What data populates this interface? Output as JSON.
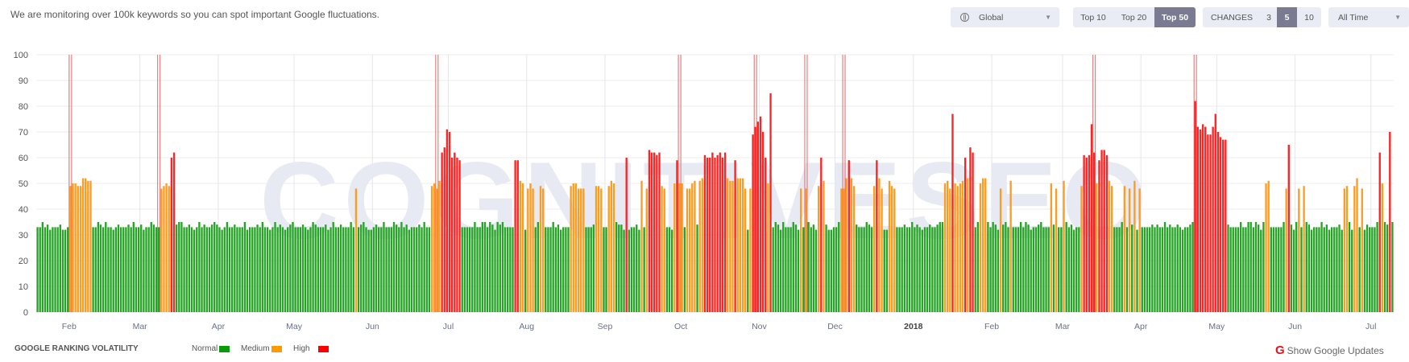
{
  "header": {
    "intro_text": "We are monitoring over 100k keywords so you can spot important Google fluctuations.",
    "region_select": {
      "value": "Global",
      "icon": "globe-icon"
    },
    "top_tabs": [
      {
        "label": "Top 10",
        "active": false
      },
      {
        "label": "Top 20",
        "active": false
      },
      {
        "label": "Top 50",
        "active": true
      }
    ],
    "changes": {
      "label": "CHANGES",
      "options": [
        {
          "label": "3",
          "active": false
        },
        {
          "label": "5",
          "active": true
        },
        {
          "label": "10",
          "active": false
        }
      ]
    },
    "period_select": {
      "value": "All Time"
    }
  },
  "watermark": "COGNITIVESEO",
  "legend": {
    "title": "GOOGLE RANKING VOLATILITY",
    "items": [
      {
        "label": "Normal",
        "color": "#0a9a0a"
      },
      {
        "label": "Medium",
        "color": "#ff9900"
      },
      {
        "label": "High",
        "color": "#ff0000"
      }
    ]
  },
  "show_updates_label": "Show Google Updates",
  "chart_data": {
    "type": "bar",
    "title": "",
    "xlabel": "",
    "ylabel": "",
    "ylim": [
      0,
      100
    ],
    "y_ticks": [
      0,
      10,
      20,
      30,
      40,
      50,
      60,
      70,
      80,
      90,
      100
    ],
    "grid": true,
    "colors": {
      "normal": "#25a425",
      "medium": "#ff9c1f",
      "high": "#ff2424",
      "update_marker": "#e26a6a"
    },
    "x_ticks": [
      {
        "label": "Feb",
        "date": "2017-02-01"
      },
      {
        "label": "Mar",
        "date": "2017-03-01"
      },
      {
        "label": "Apr",
        "date": "2017-04-01"
      },
      {
        "label": "May",
        "date": "2017-05-01"
      },
      {
        "label": "Jun",
        "date": "2017-06-01"
      },
      {
        "label": "Jul",
        "date": "2017-07-01"
      },
      {
        "label": "Aug",
        "date": "2017-08-01"
      },
      {
        "label": "Sep",
        "date": "2017-09-01"
      },
      {
        "label": "Oct",
        "date": "2017-10-01"
      },
      {
        "label": "Nov",
        "date": "2017-11-01"
      },
      {
        "label": "Dec",
        "date": "2017-12-01"
      },
      {
        "label": "2018",
        "date": "2018-01-01",
        "bold": true
      },
      {
        "label": "Feb",
        "date": "2018-02-01"
      },
      {
        "label": "Mar",
        "date": "2018-03-01"
      },
      {
        "label": "Apr",
        "date": "2018-04-01"
      },
      {
        "label": "May",
        "date": "2018-05-01"
      },
      {
        "label": "Jun",
        "date": "2018-06-01"
      },
      {
        "label": "Jul",
        "date": "2018-07-01"
      }
    ],
    "google_updates": [
      "2017-02-01",
      "2017-03-08",
      "2017-06-26",
      "2017-09-30",
      "2017-10-30",
      "2017-11-19",
      "2017-12-04",
      "2018-03-13",
      "2018-04-22"
    ],
    "values": [
      33,
      33,
      35,
      33,
      34,
      32,
      33,
      33,
      33,
      34,
      32,
      32,
      33,
      49,
      50,
      50,
      49,
      49,
      52,
      52,
      51,
      51,
      33,
      33,
      35,
      34,
      33,
      35,
      33,
      33,
      32,
      33,
      34,
      33,
      33,
      33,
      34,
      33,
      35,
      33,
      33,
      34,
      32,
      33,
      33,
      35,
      34,
      33,
      33,
      48,
      49,
      50,
      49,
      60,
      62,
      34,
      35,
      35,
      33,
      33,
      34,
      33,
      32,
      33,
      35,
      33,
      34,
      33,
      33,
      34,
      35,
      34,
      33,
      32,
      33,
      35,
      33,
      33,
      34,
      33,
      33,
      33,
      35,
      32,
      33,
      33,
      33,
      34,
      33,
      35,
      33,
      33,
      32,
      33,
      35,
      33,
      34,
      33,
      32,
      33,
      34,
      35,
      33,
      33,
      33,
      34,
      33,
      32,
      33,
      35,
      34,
      33,
      33,
      33,
      34,
      32,
      33,
      35,
      33,
      33,
      34,
      33,
      33,
      33,
      35,
      33,
      48,
      33,
      34,
      35,
      33,
      32,
      32,
      33,
      34,
      33,
      33,
      35,
      33,
      33,
      33,
      35,
      34,
      33,
      35,
      33,
      34,
      32,
      33,
      33,
      33,
      34,
      33,
      35,
      33,
      33,
      49,
      50,
      48,
      51,
      62,
      64,
      71,
      70,
      60,
      62,
      60,
      59,
      33,
      33,
      33,
      33,
      33,
      35,
      33,
      33,
      35,
      35,
      33,
      35,
      34,
      32,
      35,
      34,
      35,
      33,
      33,
      33,
      33,
      59,
      59,
      51,
      50,
      32,
      48,
      50,
      48,
      33,
      35,
      49,
      48,
      33,
      33,
      33,
      35,
      33,
      34,
      32,
      33,
      33,
      33,
      49,
      50,
      50,
      48,
      48,
      48,
      33,
      33,
      33,
      34,
      49,
      49,
      48,
      33,
      33,
      49,
      51,
      50,
      35,
      34,
      34,
      32,
      60,
      32,
      33,
      33,
      34,
      32,
      51,
      33,
      48,
      63,
      62,
      62,
      61,
      62,
      49,
      48,
      33,
      33,
      32,
      50,
      59,
      50,
      50,
      33,
      48,
      48,
      50,
      51,
      34,
      51,
      52,
      61,
      60,
      60,
      62,
      60,
      61,
      62,
      60,
      62,
      52,
      51,
      51,
      59,
      52,
      52,
      52,
      48,
      32,
      48,
      69,
      72,
      74,
      76,
      70,
      60,
      50,
      85,
      33,
      35,
      34,
      32,
      35,
      33,
      33,
      33,
      35,
      34,
      32,
      48,
      33,
      48,
      35,
      33,
      34,
      32,
      49,
      60,
      51,
      34,
      32,
      32,
      33,
      33,
      35,
      48,
      48,
      52,
      59,
      52,
      49,
      34,
      33,
      33,
      33,
      35,
      34,
      33,
      49,
      59,
      52,
      48,
      32,
      32,
      51,
      49,
      48,
      33,
      33,
      33,
      34,
      33,
      33,
      35,
      33,
      34,
      33,
      32,
      33,
      33,
      34,
      33,
      33,
      34,
      35,
      35,
      50,
      51,
      48,
      77,
      50,
      49,
      50,
      51,
      60,
      52,
      64,
      62,
      33,
      35,
      50,
      52,
      52,
      35,
      33,
      35,
      34,
      32,
      48,
      34,
      35,
      33,
      51,
      33,
      33,
      33,
      35,
      33,
      35,
      34,
      32,
      33,
      33,
      34,
      35,
      33,
      33,
      33,
      50,
      34,
      48,
      33,
      33,
      51,
      35,
      33,
      34,
      32,
      33,
      33,
      49,
      61,
      60,
      61,
      73,
      62,
      50,
      59,
      63,
      63,
      61,
      51,
      49,
      33,
      33,
      33,
      35,
      49,
      33,
      48,
      34,
      51,
      32,
      48,
      33,
      33,
      33,
      33,
      34,
      33,
      34,
      33,
      33,
      35,
      33,
      34,
      33,
      33,
      34,
      33,
      32,
      33,
      33,
      34,
      35,
      82,
      72,
      71,
      73,
      72,
      69,
      69,
      72,
      77,
      70,
      68,
      67,
      67,
      34,
      33,
      33,
      33,
      33,
      35,
      33,
      33,
      35,
      35,
      33,
      35,
      34,
      32,
      35,
      50,
      51,
      33,
      33,
      33,
      33,
      33,
      35,
      48,
      65,
      34,
      32,
      35,
      48,
      33,
      49,
      35,
      34,
      32,
      33,
      33,
      33,
      35,
      33,
      34,
      32,
      33,
      33,
      33,
      34,
      32,
      48,
      49,
      35,
      32,
      49,
      52,
      33,
      48,
      32,
      34,
      33,
      33,
      33,
      35,
      62,
      50,
      35,
      34,
      70,
      35
    ]
  }
}
